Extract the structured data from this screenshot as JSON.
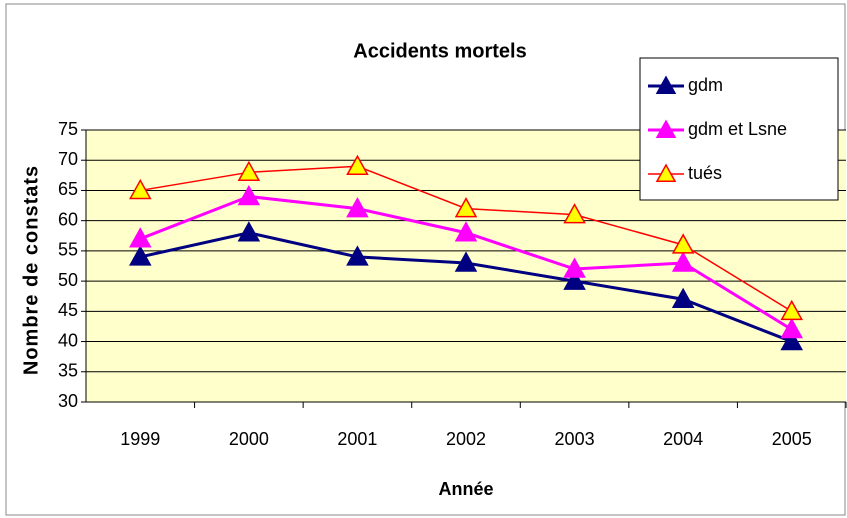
{
  "chart_data": {
    "type": "line",
    "title": "Accidents mortels",
    "xlabel": "Année",
    "ylabel": "Nombre de constats",
    "categories": [
      "1999",
      "2000",
      "2001",
      "2002",
      "2003",
      "2004",
      "2005"
    ],
    "series": [
      {
        "name": "gdm",
        "color": "#000080",
        "marker_fill": "#000080",
        "values": [
          54,
          58,
          54,
          53,
          50,
          47,
          40
        ]
      },
      {
        "name": "gdm et Lsne",
        "color": "#ff00ff",
        "marker_fill": "#ff00ff",
        "values": [
          57,
          64,
          62,
          58,
          52,
          53,
          42
        ]
      },
      {
        "name": "tués",
        "color": "#ff0000",
        "marker_fill": "#ffff00",
        "values": [
          65,
          68,
          69,
          62,
          61,
          56,
          45
        ]
      }
    ],
    "ylim": [
      30,
      75
    ],
    "yticks": [
      30,
      35,
      40,
      45,
      50,
      55,
      60,
      65,
      70,
      75
    ],
    "grid": true,
    "legend": "upper right",
    "plot_background": "#ffffcc"
  }
}
